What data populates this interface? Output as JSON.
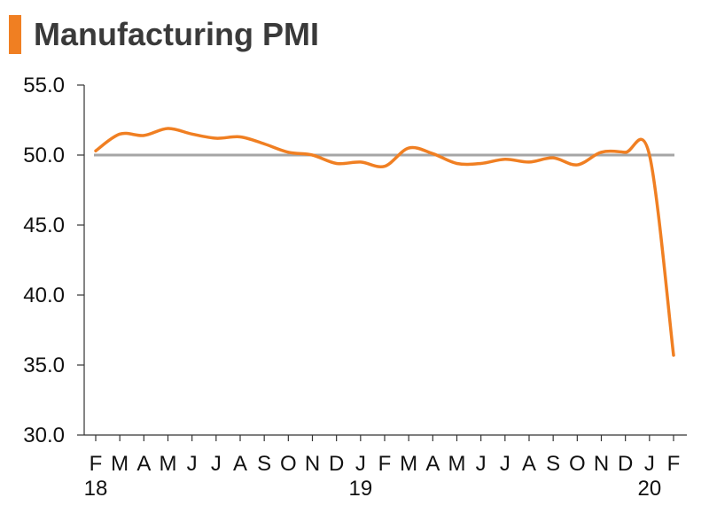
{
  "header": {
    "title": "Manufacturing PMI"
  },
  "colors": {
    "accent": "#F07F22",
    "series": "#F07F22",
    "reference_line": "#A6A6A6",
    "axis": "#333333"
  },
  "chart_data": {
    "type": "line",
    "title": "Manufacturing PMI",
    "xlabel": "",
    "ylabel": "",
    "ylim": [
      30.0,
      55.0
    ],
    "yticks": [
      "55.0",
      "50.0",
      "45.0",
      "40.0",
      "35.0",
      "30.0"
    ],
    "ytick_values": [
      55.0,
      50.0,
      45.0,
      40.0,
      35.0,
      30.0
    ],
    "x": [
      "F",
      "M",
      "A",
      "M",
      "J",
      "J",
      "A",
      "S",
      "O",
      "N",
      "D",
      "J",
      "F",
      "M",
      "A",
      "M",
      "J",
      "J",
      "A",
      "S",
      "O",
      "N",
      "D",
      "J",
      "F"
    ],
    "year_labels": [
      {
        "index": 0,
        "label": "18"
      },
      {
        "index": 11,
        "label": "19"
      },
      {
        "index": 23,
        "label": "20"
      }
    ],
    "reference_line": 50.0,
    "grid": false,
    "series": [
      {
        "values": [
          50.3,
          51.5,
          51.4,
          51.9,
          51.5,
          51.2,
          51.3,
          50.8,
          50.2,
          50.0,
          49.4,
          49.5,
          49.2,
          50.5,
          50.1,
          49.4,
          49.4,
          49.7,
          49.5,
          49.8,
          49.3,
          50.2,
          50.2,
          50.0,
          35.7
        ]
      }
    ]
  }
}
